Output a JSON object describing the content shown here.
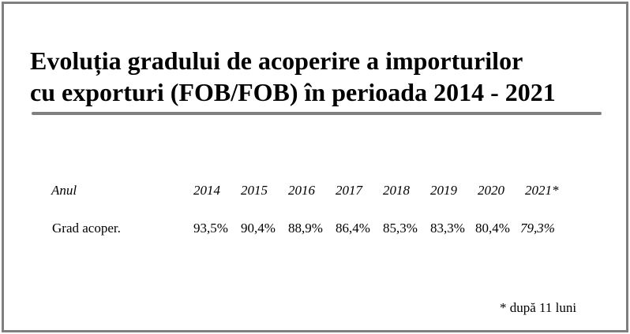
{
  "title": {
    "line1": "Evoluția gradului de acoperire a importurilor",
    "line2": "cu exporturi (FOB/FOB) în perioada 2014 - 2021"
  },
  "table": {
    "header_label": "Anul",
    "years": [
      "2014",
      "2015",
      "2016",
      "2017",
      "2018",
      "2019",
      "2020",
      "2021*"
    ],
    "row_label": "Grad acoper.",
    "values": [
      "93,5%",
      "90,4%",
      "88,9%",
      "86,4%",
      "85,3%",
      "83,3%",
      "80,4%",
      "79,3%"
    ]
  },
  "footnote": "* după 11 luni"
}
